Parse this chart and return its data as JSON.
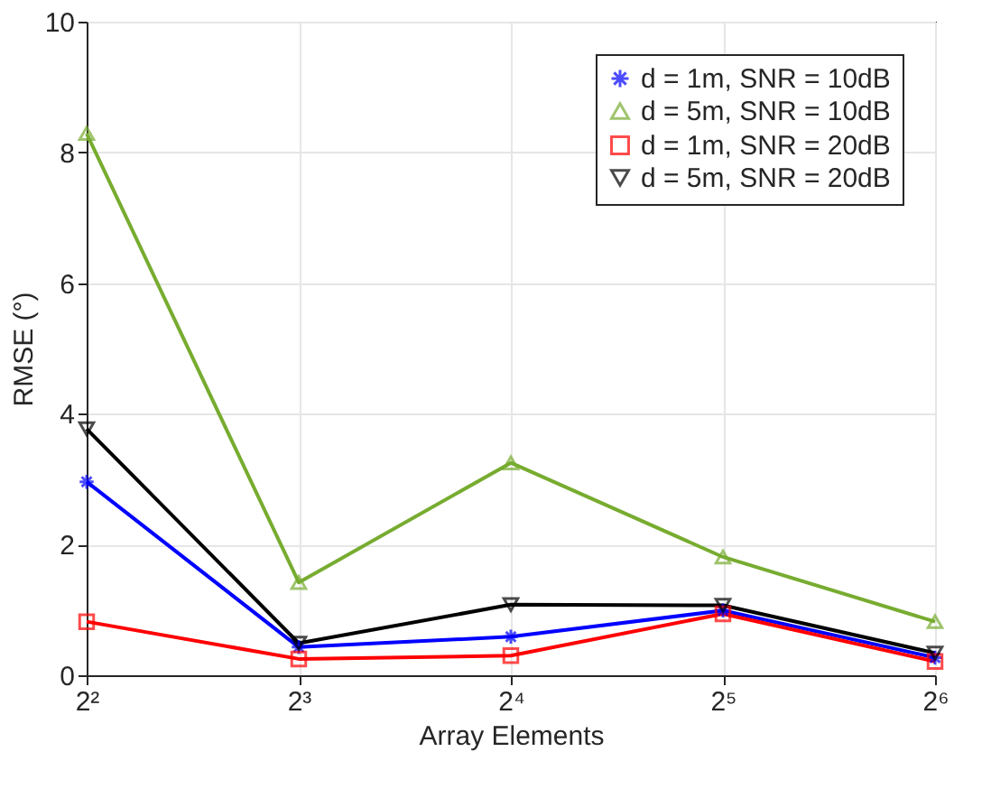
{
  "chart_data": {
    "type": "line",
    "xlabel": "Array Elements",
    "ylabel": "RMSE (°)",
    "x": [
      4,
      8,
      16,
      32,
      64
    ],
    "xlim": [
      4,
      64
    ],
    "xticks": [
      {
        "value": 4,
        "label": "2²"
      },
      {
        "value": 8,
        "label": "2³"
      },
      {
        "value": 16,
        "label": "2⁴"
      },
      {
        "value": 32,
        "label": "2⁵"
      },
      {
        "value": 64,
        "label": "2⁶"
      }
    ],
    "log": "x",
    "ylim": [
      0,
      10
    ],
    "yticks": [
      0,
      2,
      4,
      6,
      8,
      10
    ],
    "grid": true,
    "legend": "top right",
    "line_style": "solid",
    "series": [
      {
        "name": "d = 1m, SNR = 10dB",
        "color": "#0000ff",
        "marker": "cross",
        "values": [
          2.96,
          0.43,
          0.59,
          0.99,
          0.27
        ]
      },
      {
        "name": "d = 5m, SNR = 10dB",
        "color": "#77ac30",
        "marker": "triangle",
        "values": [
          8.29,
          1.42,
          3.25,
          1.81,
          0.82
        ]
      },
      {
        "name": "d = 1m, SNR = 20dB",
        "color": "#ff0000",
        "marker": "square",
        "values": [
          0.82,
          0.25,
          0.3,
          0.94,
          0.21
        ]
      },
      {
        "name": "d = 5m, SNR = 20dB",
        "color": "#000000",
        "marker": "triangle-down",
        "values": [
          3.77,
          0.49,
          1.08,
          1.07,
          0.34
        ]
      }
    ]
  }
}
